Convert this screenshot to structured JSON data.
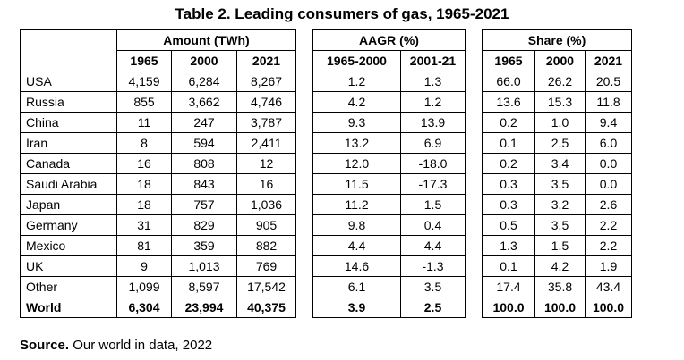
{
  "title": "Table 2. Leading consumers of gas, 1965-2021",
  "groups": {
    "amount": "Amount (TWh)",
    "aagr": "AAGR (%)",
    "share": "Share (%)"
  },
  "subheaders": {
    "amount": [
      "1965",
      "2000",
      "2021"
    ],
    "aagr": [
      "1965-2000",
      "2001-21"
    ],
    "share": [
      "1965",
      "2000",
      "2021"
    ]
  },
  "rows": [
    {
      "country": "USA",
      "amount": [
        "4,159",
        "6,284",
        "8,267"
      ],
      "aagr": [
        "1.2",
        "1.3"
      ],
      "share": [
        "66.0",
        "26.2",
        "20.5"
      ]
    },
    {
      "country": "Russia",
      "amount": [
        "855",
        "3,662",
        "4,746"
      ],
      "aagr": [
        "4.2",
        "1.2"
      ],
      "share": [
        "13.6",
        "15.3",
        "11.8"
      ]
    },
    {
      "country": "China",
      "amount": [
        "11",
        "247",
        "3,787"
      ],
      "aagr": [
        "9.3",
        "13.9"
      ],
      "share": [
        "0.2",
        "1.0",
        "9.4"
      ]
    },
    {
      "country": "Iran",
      "amount": [
        "8",
        "594",
        "2,411"
      ],
      "aagr": [
        "13.2",
        "6.9"
      ],
      "share": [
        "0.1",
        "2.5",
        "6.0"
      ]
    },
    {
      "country": "Canada",
      "amount": [
        "16",
        "808",
        "12"
      ],
      "aagr": [
        "12.0",
        "-18.0"
      ],
      "share": [
        "0.2",
        "3.4",
        "0.0"
      ]
    },
    {
      "country": "Saudi Arabia",
      "amount": [
        "18",
        "843",
        "16"
      ],
      "aagr": [
        "11.5",
        "-17.3"
      ],
      "share": [
        "0.3",
        "3.5",
        "0.0"
      ]
    },
    {
      "country": "Japan",
      "amount": [
        "18",
        "757",
        "1,036"
      ],
      "aagr": [
        "11.2",
        "1.5"
      ],
      "share": [
        "0.3",
        "3.2",
        "2.6"
      ]
    },
    {
      "country": "Germany",
      "amount": [
        "31",
        "829",
        "905"
      ],
      "aagr": [
        "9.8",
        "0.4"
      ],
      "share": [
        "0.5",
        "3.5",
        "2.2"
      ]
    },
    {
      "country": "Mexico",
      "amount": [
        "81",
        "359",
        "882"
      ],
      "aagr": [
        "4.4",
        "4.4"
      ],
      "share": [
        "1.3",
        "1.5",
        "2.2"
      ]
    },
    {
      "country": "UK",
      "amount": [
        "9",
        "1,013",
        "769"
      ],
      "aagr": [
        "14.6",
        "-1.3"
      ],
      "share": [
        "0.1",
        "4.2",
        "1.9"
      ]
    },
    {
      "country": "Other",
      "amount": [
        "1,099",
        "8,597",
        "17,542"
      ],
      "aagr": [
        "6.1",
        "3.5"
      ],
      "share": [
        "17.4",
        "35.8",
        "43.4"
      ]
    }
  ],
  "total": {
    "country": "World",
    "amount": [
      "6,304",
      "23,994",
      "40,375"
    ],
    "aagr": [
      "3.9",
      "2.5"
    ],
    "share": [
      "100.0",
      "100.0",
      "100.0"
    ]
  },
  "source": {
    "label": "Source.",
    "text": " Our world in data, 2022"
  }
}
